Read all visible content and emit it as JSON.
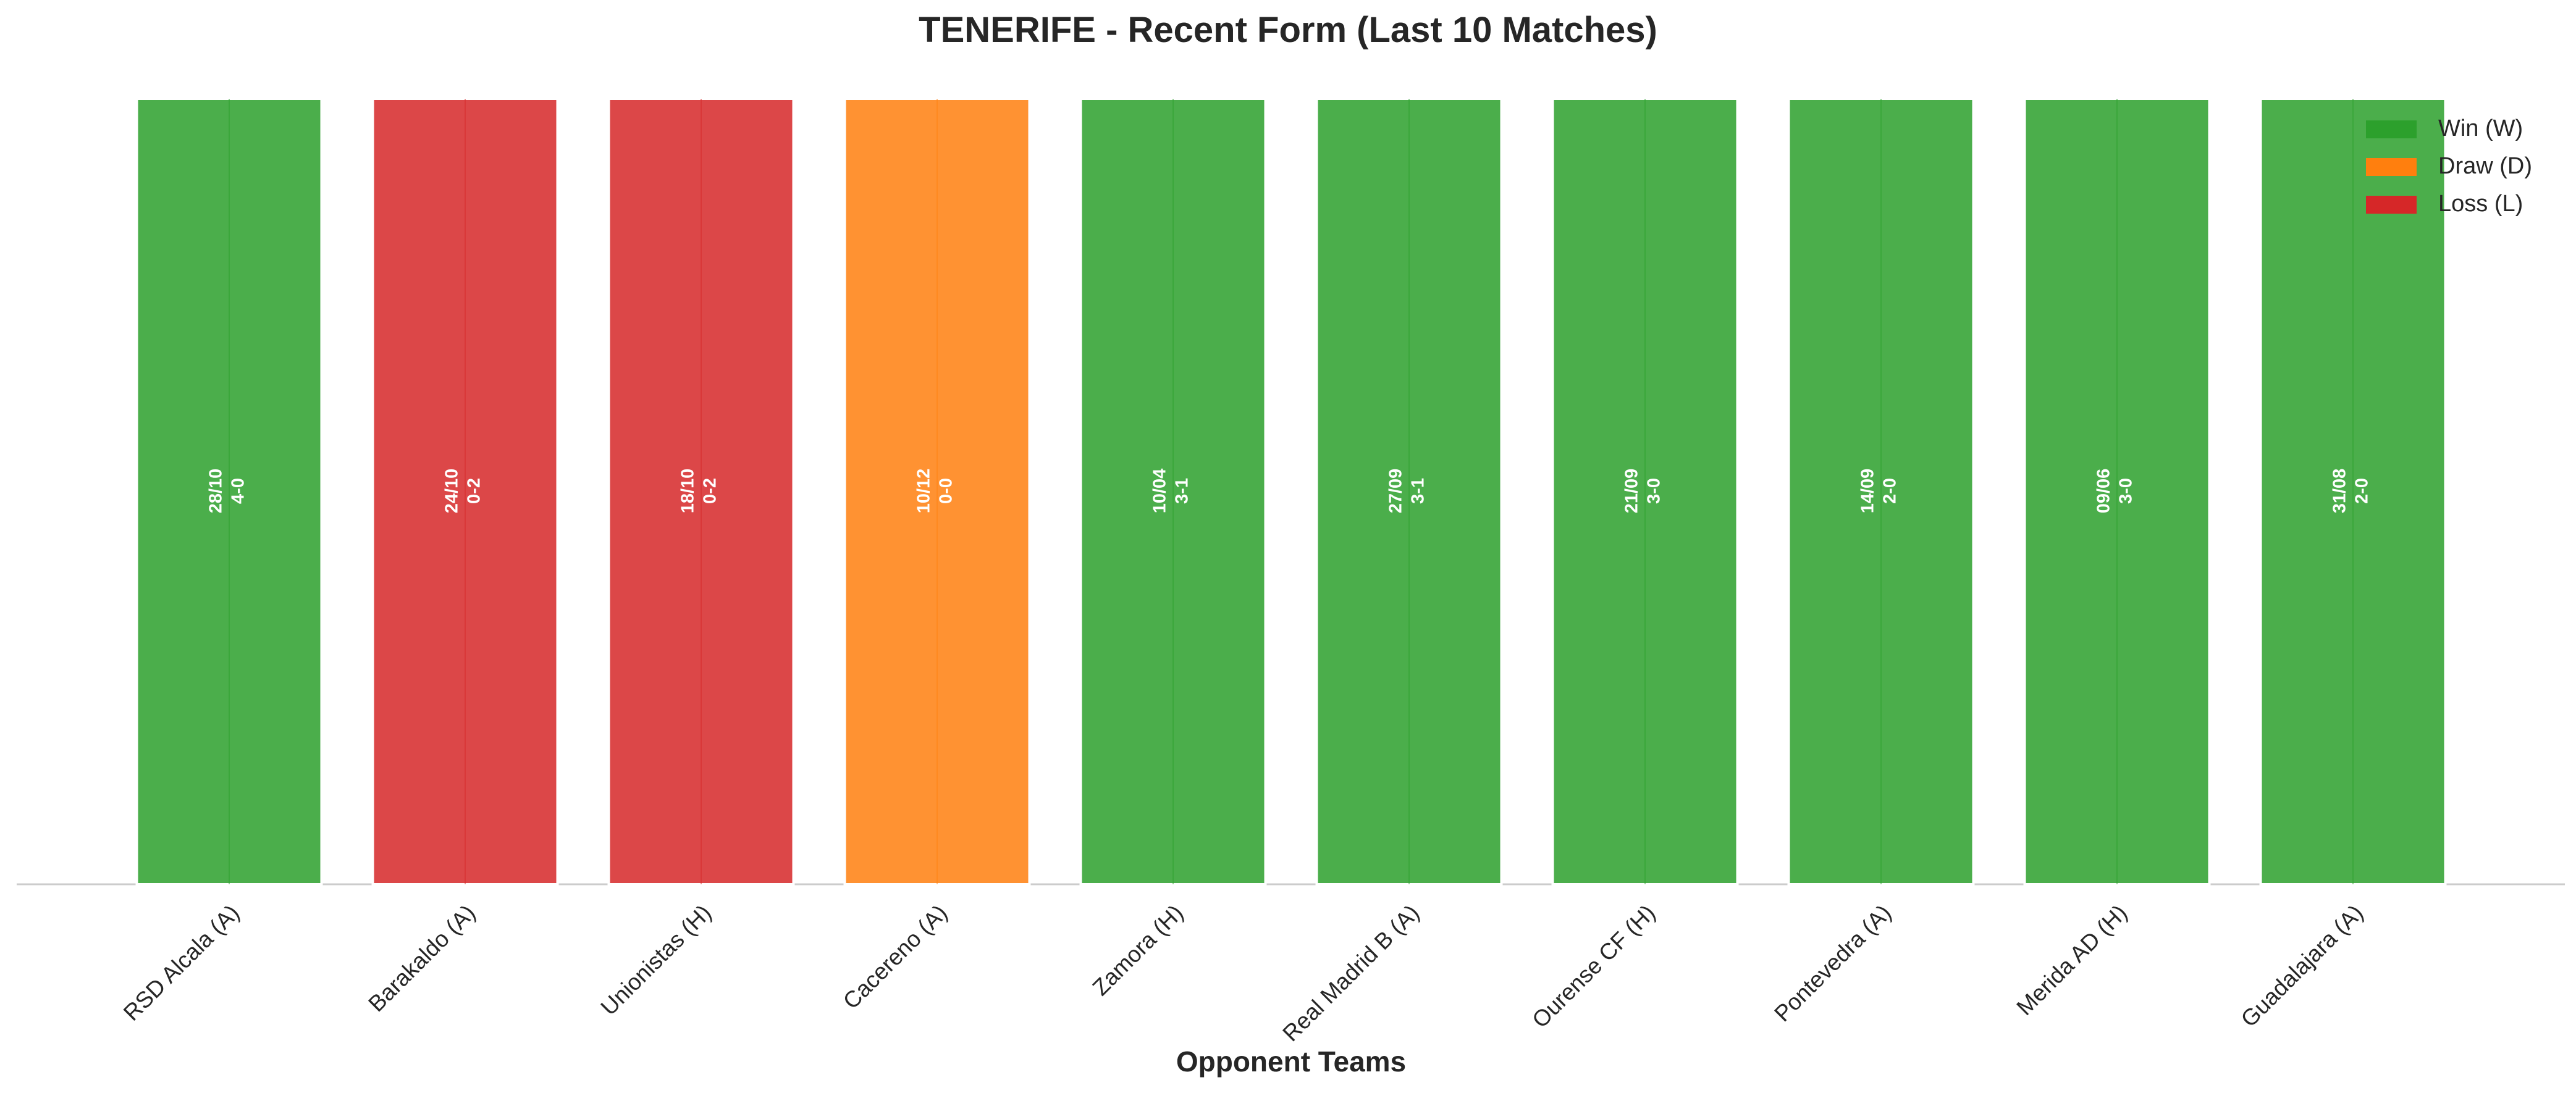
{
  "chart_data": {
    "type": "bar",
    "title": "TENERIFE - Recent Form (Last 10 Matches)",
    "x_label": "Opponent Teams",
    "categories": [
      "RSD Alcala (A)",
      "Barakaldo (A)",
      "Unionistas (H)",
      "Cacereno (A)",
      "Zamora (H)",
      "Real Madrid B (A)",
      "Ourense CF (H)",
      "Pontevedra (A)",
      "Merida AD (H)",
      "Guadalajara (A)"
    ],
    "dates": [
      "28/10",
      "24/10",
      "18/10",
      "10/12",
      "10/04",
      "27/09",
      "21/09",
      "14/09",
      "09/06",
      "31/08"
    ],
    "scores": [
      "4-0",
      "0-2",
      "0-2",
      "0-0",
      "3-1",
      "3-1",
      "3-0",
      "2-0",
      "3-0",
      "2-0"
    ],
    "series": [
      {
        "name": "Win (W)",
        "color": "#2ca02c",
        "values": [
          1,
          null,
          null,
          null,
          1,
          1,
          1,
          1,
          1,
          1
        ]
      },
      {
        "name": "Draw (D)",
        "color": "#ff7f0e",
        "values": [
          null,
          null,
          null,
          1,
          null,
          null,
          null,
          null,
          null,
          null
        ]
      },
      {
        "name": "Loss (L)",
        "color": "#d62728",
        "values": [
          null,
          1,
          1,
          null,
          null,
          null,
          null,
          null,
          null,
          null
        ]
      }
    ],
    "ylim": [
      0,
      1
    ],
    "legend": "upper right"
  }
}
